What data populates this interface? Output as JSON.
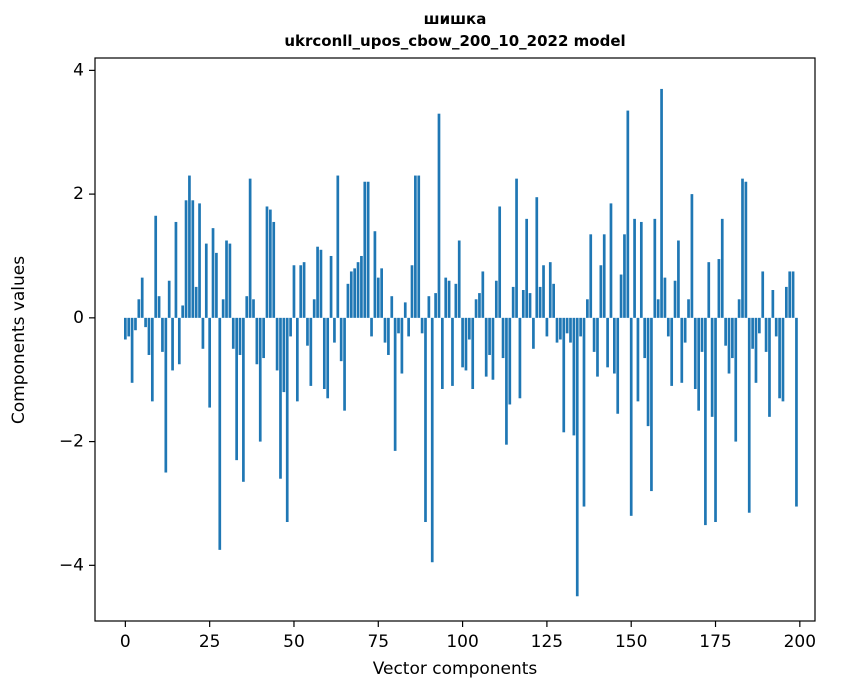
{
  "figure": {
    "title_line1": "шишка",
    "title_line2": "ukrconll_upos_cbow_200_10_2022 model",
    "xlabel": "Vector components",
    "ylabel": "Components values"
  },
  "chart_data": {
    "type": "bar",
    "title": "шишка",
    "subtitle": "ukrconll_upos_cbow_200_10_2022 model",
    "xlabel": "Vector components",
    "ylabel": "Components values",
    "x_description": "vector component index 0..199 (bar per index)",
    "xlim": [
      -9,
      204.5
    ],
    "ylim": [
      -4.9,
      4.2
    ],
    "xticks": [
      0,
      25,
      50,
      75,
      100,
      125,
      150,
      175,
      200
    ],
    "yticks": [
      -4,
      -2,
      0,
      2,
      4
    ],
    "bar_color": "#1f77b4",
    "bar_width": 0.8,
    "grid": false,
    "legend": "none",
    "values": [
      -0.35,
      -0.3,
      -1.05,
      -0.2,
      0.3,
      0.65,
      -0.15,
      -0.6,
      -1.35,
      1.65,
      0.35,
      -0.55,
      -2.5,
      0.6,
      -0.85,
      1.55,
      -0.75,
      0.2,
      1.9,
      2.3,
      1.9,
      0.5,
      1.85,
      -0.5,
      1.2,
      -1.45,
      1.45,
      1.05,
      -3.75,
      0.3,
      1.25,
      1.2,
      -0.5,
      -2.3,
      -0.6,
      -2.65,
      0.35,
      2.25,
      0.3,
      -0.75,
      -2.0,
      -0.65,
      1.8,
      1.75,
      1.55,
      -0.85,
      -2.6,
      -1.2,
      -3.3,
      -0.3,
      0.85,
      -1.35,
      0.85,
      0.9,
      -0.45,
      -1.1,
      0.3,
      1.15,
      1.1,
      -1.15,
      -1.3,
      1.0,
      -0.4,
      2.3,
      -0.7,
      -1.5,
      0.55,
      0.75,
      0.8,
      0.9,
      1.0,
      2.2,
      2.2,
      -0.3,
      1.4,
      0.65,
      0.8,
      -0.4,
      -0.6,
      0.35,
      -2.15,
      -0.25,
      -0.9,
      0.25,
      -0.3,
      0.85,
      2.3,
      2.3,
      -0.25,
      -3.3,
      0.35,
      -3.95,
      0.4,
      3.3,
      -1.15,
      0.65,
      0.6,
      -1.1,
      0.55,
      1.25,
      -0.8,
      -0.85,
      -0.35,
      -1.15,
      0.3,
      0.4,
      0.75,
      -0.95,
      -0.6,
      -1.0,
      0.6,
      1.8,
      -0.65,
      -2.05,
      -1.4,
      0.5,
      2.25,
      -1.3,
      0.45,
      1.6,
      0.4,
      -0.5,
      1.95,
      0.5,
      0.85,
      -0.3,
      0.9,
      0.55,
      -0.4,
      -0.35,
      -1.85,
      -0.25,
      -0.4,
      -1.9,
      -4.5,
      -0.3,
      -3.05,
      0.3,
      1.35,
      -0.55,
      -0.95,
      0.85,
      1.35,
      -0.8,
      1.85,
      -0.9,
      -1.55,
      0.7,
      1.35,
      3.35,
      -3.2,
      1.6,
      -1.35,
      1.55,
      -0.65,
      -1.75,
      -2.8,
      1.6,
      0.3,
      3.7,
      0.65,
      -0.3,
      -1.1,
      0.6,
      1.25,
      -1.05,
      -0.4,
      0.3,
      2.0,
      -1.15,
      -1.5,
      -0.55,
      -3.35,
      0.9,
      -1.6,
      -3.3,
      0.95,
      1.6,
      -0.45,
      -0.9,
      -0.65,
      -2.0,
      0.3,
      2.25,
      2.2,
      -3.15,
      -0.5,
      -1.05,
      -0.25,
      0.75,
      -0.55,
      -1.6,
      0.45,
      -0.3,
      -1.3,
      -1.35,
      0.5,
      0.75,
      0.75,
      -3.05
    ]
  }
}
